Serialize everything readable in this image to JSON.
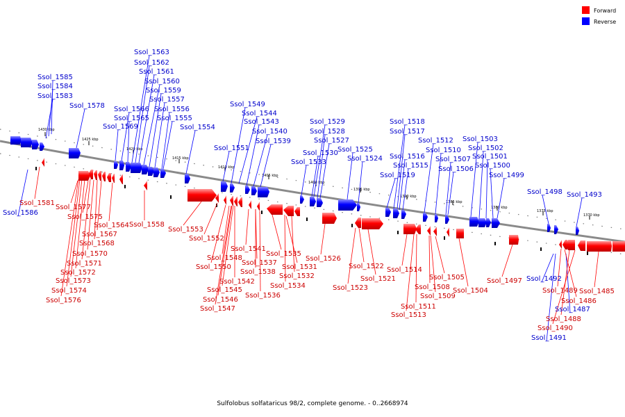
{
  "caption": "Sulfolobus solfataricus 98/2, complete genome. - 0..2668974",
  "colors": {
    "forward": "#ff0000",
    "reverse": "#0000ff",
    "forward_text": "#cc0000",
    "reverse_text": "#0000cc"
  },
  "legend": [
    {
      "label": "Forward",
      "strand": "forward"
    },
    {
      "label": "Reverse",
      "strand": "reverse"
    }
  ],
  "ticks": [
    "1430 kbp",
    "1425 kbp",
    "1420 kbp",
    "1415 kbp",
    "1410 kbp",
    "1405 kbp",
    "1400 kbp",
    "1395 kbp",
    "1390 kbp",
    "1385 kbp",
    "1380 kbp",
    "1375 kbp",
    "1370 kbp"
  ],
  "reverse_genes": [
    "Ssol_1586",
    "Ssol_1585",
    "Ssol_1584",
    "Ssol_1583",
    "Ssol_1578",
    "Ssol_1569",
    "Ssol_1566",
    "Ssol_1565",
    "Ssol_1563",
    "Ssol_1562",
    "Ssol_1561",
    "Ssol_1560",
    "Ssol_1559",
    "Ssol_1557",
    "Ssol_1556",
    "Ssol_1555",
    "Ssol_1554",
    "Ssol_1551",
    "Ssol_1549",
    "Ssol_1544",
    "Ssol_1543",
    "Ssol_1540",
    "Ssol_1539",
    "Ssol_1533",
    "Ssol_1530",
    "Ssol_1529",
    "Ssol_1528",
    "Ssol_1527",
    "Ssol_1525",
    "Ssol_1524",
    "Ssol_1519",
    "Ssol_1518",
    "Ssol_1517",
    "Ssol_1516",
    "Ssol_1515",
    "Ssol_1512",
    "Ssol_1510",
    "Ssol_1507",
    "Ssol_1506",
    "Ssol_1503",
    "Ssol_1502",
    "Ssol_1501",
    "Ssol_1500",
    "Ssol_1499",
    "Ssol_1498",
    "Ssol_1493",
    "Ssol_1492",
    "Ssol_1491",
    "Ssol_1487"
  ],
  "forward_genes": [
    "Ssol_1581",
    "Ssol_1577",
    "Ssol_1575",
    "Ssol_1564",
    "Ssol_1567",
    "Ssol_1568",
    "Ssol_1570",
    "Ssol_1571",
    "Ssol_1572",
    "Ssol_1573",
    "Ssol_1574",
    "Ssol_1576",
    "Ssol_1558",
    "Ssol_1553",
    "Ssol_1552",
    "Ssol_1541",
    "Ssol_1548",
    "Ssol_1550",
    "Ssol_1537",
    "Ssol_1538",
    "Ssol_1535",
    "Ssol_1542",
    "Ssol_1545",
    "Ssol_1546",
    "Ssol_1547",
    "Ssol_1536",
    "Ssol_1531",
    "Ssol_1532",
    "Ssol_1534",
    "Ssol_1526",
    "Ssol_1522",
    "Ssol_1521",
    "Ssol_1523",
    "Ssol_1514",
    "Ssol_1511",
    "Ssol_1513",
    "Ssol_1505",
    "Ssol_1508",
    "Ssol_1509",
    "Ssol_1504",
    "Ssol_1497",
    "Ssol_1489",
    "Ssol_1486",
    "Ssol_1485",
    "Ssol_1488",
    "Ssol_1490"
  ]
}
